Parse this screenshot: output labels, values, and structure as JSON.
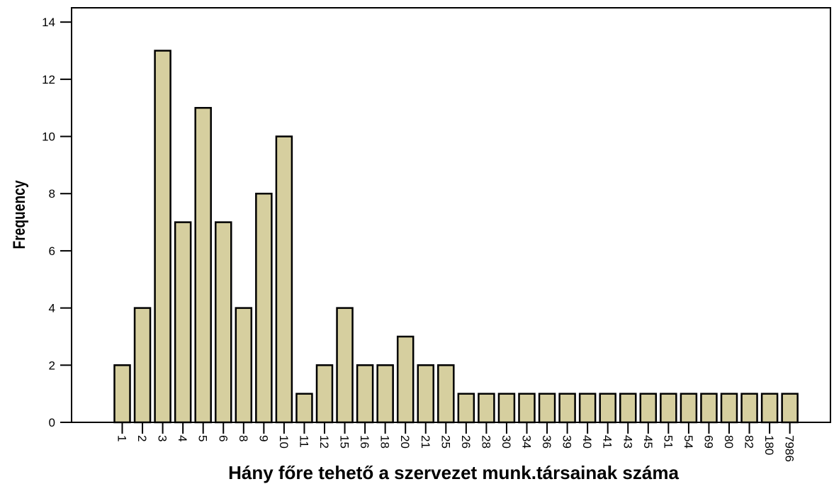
{
  "chart_data": {
    "type": "bar",
    "title": "",
    "xlabel": "Hány főre tehető a szervezet munk.társainak száma",
    "ylabel": "Frequency",
    "ylim": [
      0,
      14.5
    ],
    "yticks": [
      "0",
      "2",
      "4",
      "6",
      "8",
      "10",
      "12",
      "14"
    ],
    "categories": [
      "1",
      "2",
      "3",
      "4",
      "5",
      "6",
      "8",
      "9",
      "10",
      "11",
      "12",
      "15",
      "16",
      "18",
      "20",
      "21",
      "25",
      "26",
      "28",
      "30",
      "34",
      "36",
      "39",
      "40",
      "41",
      "43",
      "45",
      "51",
      "54",
      "69",
      "80",
      "82",
      "180",
      "7986"
    ],
    "values": [
      2,
      4,
      13,
      7,
      11,
      7,
      4,
      8,
      10,
      1,
      2,
      4,
      2,
      2,
      3,
      2,
      2,
      1,
      1,
      1,
      1,
      1,
      1,
      1,
      1,
      1,
      1,
      1,
      1,
      1,
      1,
      1,
      1,
      1
    ],
    "bar_color": "#d6cf9f",
    "bar_edge_color": "#000000",
    "grid": false,
    "legend": "none"
  }
}
